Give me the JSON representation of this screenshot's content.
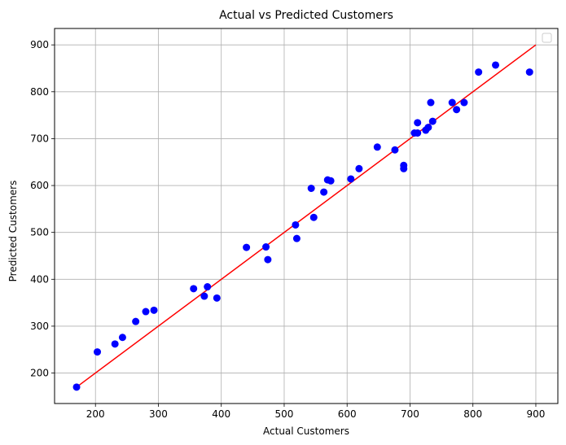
{
  "chart_data": {
    "type": "scatter",
    "title": "Actual vs Predicted Customers",
    "xlabel": "Actual Customers",
    "ylabel": "Predicted Customers",
    "xlim": [
      135,
      935
    ],
    "ylim": [
      135,
      935
    ],
    "xticks": [
      200,
      300,
      400,
      500,
      600,
      700,
      800,
      900
    ],
    "yticks": [
      200,
      300,
      400,
      500,
      600,
      700,
      800,
      900
    ],
    "grid": true,
    "legend": "top-right, empty",
    "colors": {
      "points": "#0000ff",
      "line": "#ff0000",
      "grid": "#b0b0b0"
    },
    "reference_line": {
      "x": [
        170,
        900
      ],
      "y": [
        170,
        900
      ]
    },
    "points": [
      {
        "x": 170,
        "y": 170
      },
      {
        "x": 203,
        "y": 245
      },
      {
        "x": 231,
        "y": 262
      },
      {
        "x": 243,
        "y": 276
      },
      {
        "x": 264,
        "y": 310
      },
      {
        "x": 280,
        "y": 331
      },
      {
        "x": 293,
        "y": 334
      },
      {
        "x": 356,
        "y": 380
      },
      {
        "x": 373,
        "y": 364
      },
      {
        "x": 378,
        "y": 384
      },
      {
        "x": 393,
        "y": 360
      },
      {
        "x": 440,
        "y": 468
      },
      {
        "x": 471,
        "y": 469
      },
      {
        "x": 474,
        "y": 442
      },
      {
        "x": 518,
        "y": 516
      },
      {
        "x": 520,
        "y": 487
      },
      {
        "x": 543,
        "y": 594
      },
      {
        "x": 547,
        "y": 532
      },
      {
        "x": 563,
        "y": 586
      },
      {
        "x": 569,
        "y": 612
      },
      {
        "x": 574,
        "y": 610
      },
      {
        "x": 606,
        "y": 614
      },
      {
        "x": 619,
        "y": 636
      },
      {
        "x": 648,
        "y": 682
      },
      {
        "x": 676,
        "y": 676
      },
      {
        "x": 690,
        "y": 643
      },
      {
        "x": 690,
        "y": 636
      },
      {
        "x": 707,
        "y": 712
      },
      {
        "x": 712,
        "y": 734
      },
      {
        "x": 712,
        "y": 712
      },
      {
        "x": 725,
        "y": 718
      },
      {
        "x": 729,
        "y": 724
      },
      {
        "x": 733,
        "y": 777
      },
      {
        "x": 736,
        "y": 737
      },
      {
        "x": 767,
        "y": 777
      },
      {
        "x": 774,
        "y": 762
      },
      {
        "x": 786,
        "y": 777
      },
      {
        "x": 809,
        "y": 842
      },
      {
        "x": 836,
        "y": 857
      },
      {
        "x": 890,
        "y": 842
      }
    ]
  }
}
